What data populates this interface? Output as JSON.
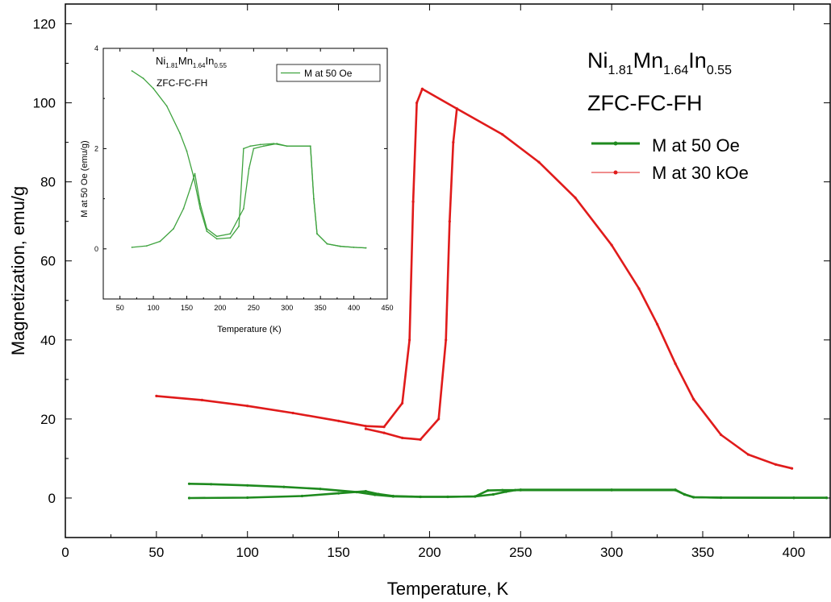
{
  "chart_data": [
    {
      "id": "main",
      "type": "line",
      "title": "",
      "xlabel": "Temperature, K",
      "ylabel": "Magnetization, emu/g",
      "xlim": [
        0,
        420
      ],
      "ylim": [
        -10,
        125
      ],
      "x_ticks": [
        0,
        50,
        100,
        150,
        200,
        250,
        300,
        350,
        400
      ],
      "y_ticks": [
        0,
        20,
        40,
        60,
        80,
        100,
        120
      ],
      "grid": false,
      "annotation": {
        "formula": [
          {
            "text": "Ni",
            "sub": false
          },
          {
            "text": "1.81",
            "sub": true
          },
          {
            "text": "Mn",
            "sub": false
          },
          {
            "text": "1.64",
            "sub": true
          },
          {
            "text": "In",
            "sub": false
          },
          {
            "text": "0.55",
            "sub": true
          }
        ],
        "protocol": "ZFC-FC-FH"
      },
      "legend": {
        "placement": "top-right",
        "entries": [
          {
            "label": "M at 50 Oe",
            "color": "#1e8a1e"
          },
          {
            "label": "M at 30 kOe",
            "color": "#e01b1b"
          }
        ]
      },
      "series": [
        {
          "name": "M at 50 Oe",
          "color": "#1e8a1e",
          "branches": [
            {
              "x": [
                68,
                80,
                100,
                120,
                140,
                160,
                170,
                180,
                195,
                210,
                225,
                232,
                240,
                250,
                300,
                335,
                340,
                345,
                360,
                400,
                418
              ],
              "y": [
                3.6,
                3.5,
                3.2,
                2.8,
                2.3,
                1.5,
                0.8,
                0.4,
                0.3,
                0.3,
                0.4,
                1.9,
                2.0,
                2.0,
                2.0,
                2.0,
                0.9,
                0.2,
                0.1,
                0.05,
                0.05
              ]
            },
            {
              "x": [
                68,
                100,
                130,
                150,
                165,
                172,
                180,
                195,
                210,
                225,
                235,
                242,
                247,
                250,
                300,
                335,
                340,
                345,
                360,
                400,
                418
              ],
              "y": [
                0.0,
                0.1,
                0.5,
                1.2,
                1.7,
                1.0,
                0.5,
                0.3,
                0.3,
                0.4,
                0.9,
                1.6,
                2.0,
                2.1,
                2.1,
                2.1,
                0.9,
                0.2,
                0.1,
                0.05,
                0.05
              ]
            }
          ]
        },
        {
          "name": "M at 30 kOe",
          "color": "#e01b1b",
          "branches": [
            {
              "x": [
                50,
                75,
                100,
                125,
                150,
                165,
                175,
                185,
                189,
                191,
                193,
                196
              ],
              "y": [
                25.8,
                24.8,
                23.3,
                21.5,
                19.5,
                18.2,
                18.0,
                24,
                40,
                75,
                100,
                103.5
              ]
            },
            {
              "x": [
                165,
                175,
                185,
                195,
                205,
                209,
                211,
                213,
                215
              ],
              "y": [
                17.5,
                16.5,
                15.2,
                14.8,
                20,
                40,
                70,
                90,
                98.5
              ]
            },
            {
              "x": [
                196,
                215,
                240,
                260,
                280,
                300,
                315,
                325,
                335,
                345,
                360,
                375,
                390,
                399
              ],
              "y": [
                103.5,
                98.5,
                92,
                85,
                76,
                64,
                53,
                44,
                34,
                25,
                16,
                11,
                8.5,
                7.5
              ]
            }
          ]
        }
      ]
    },
    {
      "id": "inset",
      "type": "line",
      "title": "",
      "xlabel": "Temperature (K)",
      "ylabel": "M at 50 Oe (emu/g)",
      "xlim": [
        25,
        450
      ],
      "ylim": [
        -1,
        4
      ],
      "x_ticks": [
        50,
        100,
        150,
        200,
        250,
        300,
        350,
        400,
        450
      ],
      "y_ticks": [
        0,
        2,
        4
      ],
      "grid": false,
      "annotation": {
        "formula": [
          {
            "text": "Ni",
            "sub": false
          },
          {
            "text": "1.81",
            "sub": true
          },
          {
            "text": "Mn",
            "sub": false
          },
          {
            "text": "1.64",
            "sub": true
          },
          {
            "text": "In",
            "sub": false
          },
          {
            "text": "0.55",
            "sub": true
          }
        ],
        "protocol": "ZFC-FC-FH"
      },
      "legend": {
        "placement": "top-right",
        "entries": [
          {
            "label": "M at 50 Oe",
            "color": "#3fa33f"
          }
        ]
      },
      "series": [
        {
          "name": "M at 50 Oe",
          "color": "#3fa33f",
          "branches": [
            {
              "x": [
                68,
                85,
                100,
                120,
                140,
                150,
                160,
                170,
                180,
                195,
                215,
                228,
                235,
                245,
                260,
                280,
                300,
                335,
                340,
                345,
                360,
                380,
                400,
                418
              ],
              "y": [
                3.55,
                3.4,
                3.2,
                2.85,
                2.3,
                1.95,
                1.45,
                0.8,
                0.35,
                0.2,
                0.22,
                0.45,
                2.0,
                2.05,
                2.08,
                2.1,
                2.05,
                2.05,
                1.0,
                0.3,
                0.1,
                0.05,
                0.03,
                0.02
              ]
            },
            {
              "x": [
                68,
                90,
                110,
                130,
                145,
                155,
                162,
                170,
                180,
                195,
                215,
                235,
                243,
                250,
                265,
                285,
                300,
                335,
                340,
                345,
                360,
                380,
                400,
                418
              ],
              "y": [
                0.03,
                0.06,
                0.15,
                0.4,
                0.8,
                1.2,
                1.5,
                0.9,
                0.4,
                0.25,
                0.3,
                0.8,
                1.6,
                2.0,
                2.05,
                2.1,
                2.05,
                2.05,
                1.0,
                0.3,
                0.1,
                0.05,
                0.03,
                0.02
              ]
            }
          ]
        }
      ]
    }
  ]
}
